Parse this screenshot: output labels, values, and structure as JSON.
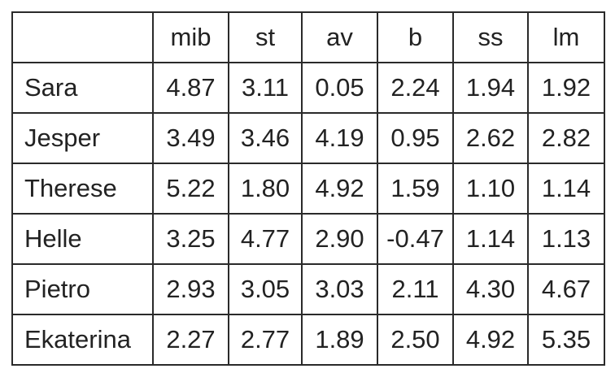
{
  "chart_data": {
    "type": "table",
    "columns": [
      "",
      "mib",
      "st",
      "av",
      "b",
      "ss",
      "lm"
    ],
    "rows": [
      {
        "label": "Sara",
        "values": [
          "4.87",
          "3.11",
          "0.05",
          "2.24",
          "1.94",
          "1.92"
        ]
      },
      {
        "label": "Jesper",
        "values": [
          "3.49",
          "3.46",
          "4.19",
          "0.95",
          "2.62",
          "2.82"
        ]
      },
      {
        "label": "Therese",
        "values": [
          "5.22",
          "1.80",
          "4.92",
          "1.59",
          "1.10",
          "1.14"
        ]
      },
      {
        "label": "Helle",
        "values": [
          "3.25",
          "4.77",
          "2.90",
          "-0.47",
          "1.14",
          "1.13"
        ]
      },
      {
        "label": "Pietro",
        "values": [
          "2.93",
          "3.05",
          "3.03",
          "2.11",
          "4.30",
          "4.67"
        ]
      },
      {
        "label": "Ekaterina",
        "values": [
          "2.27",
          "2.77",
          "1.89",
          "2.50",
          "4.92",
          "5.35"
        ]
      }
    ]
  }
}
